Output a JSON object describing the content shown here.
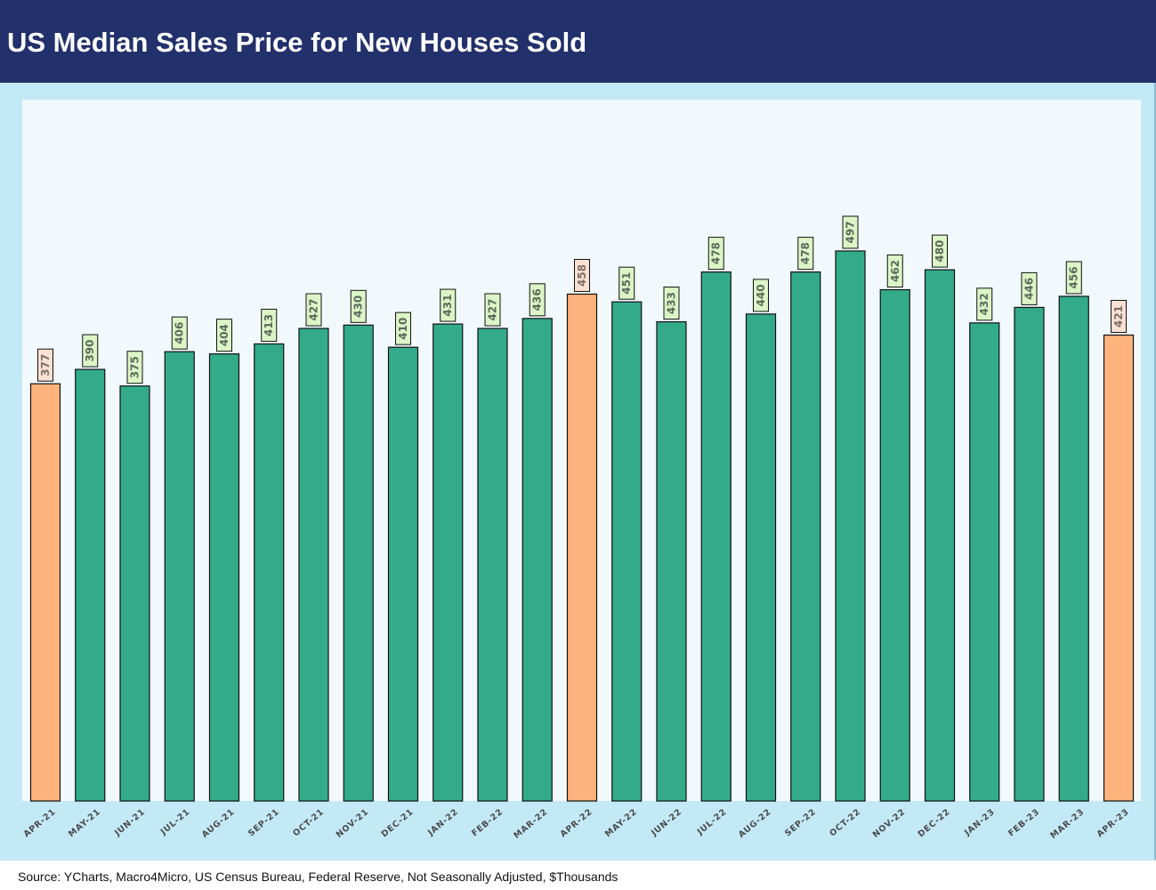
{
  "header": {
    "title": "US Median Sales Price for New Houses Sold"
  },
  "footer": {
    "source": "Source: YCharts, Macro4Micro, US Census Bureau, Federal Reserve, Not Seasonally Adjusted, $Thousands"
  },
  "colors": {
    "header_bg": "#22306b",
    "frame_bg": "#c4e9f6",
    "plot_bg": "#f1f9fc",
    "bar_normal": "#33ab8b",
    "bar_highlight": "#ffb37c",
    "label_normal": "#dcf5c6",
    "label_highlight": "#fbe1d4"
  },
  "chart_data": {
    "type": "bar",
    "title": "US Median Sales Price for New Houses Sold",
    "xlabel": "",
    "ylabel": "",
    "ylim": [
      0,
      530
    ],
    "grid": false,
    "units": "$Thousands",
    "categories": [
      "APR-21",
      "MAY-21",
      "JUN-21",
      "JUL-21",
      "AUG-21",
      "SEP-21",
      "OCT-21",
      "NOV-21",
      "DEC-21",
      "JAN-22",
      "FEB-22",
      "MAR-22",
      "APR-22",
      "MAY-22",
      "JUN-22",
      "JUL-22",
      "AUG-22",
      "SEP-22",
      "OCT-22",
      "NOV-22",
      "DEC-22",
      "JAN-23",
      "FEB-23",
      "MAR-23",
      "APR-23"
    ],
    "values": [
      377,
      390,
      375,
      406,
      404,
      413,
      427,
      430,
      410,
      431,
      427,
      436,
      458,
      451,
      433,
      478,
      440,
      478,
      497,
      462,
      480,
      432,
      446,
      456,
      421
    ],
    "highlighted_categories": [
      "APR-21",
      "APR-22",
      "APR-23"
    ]
  }
}
